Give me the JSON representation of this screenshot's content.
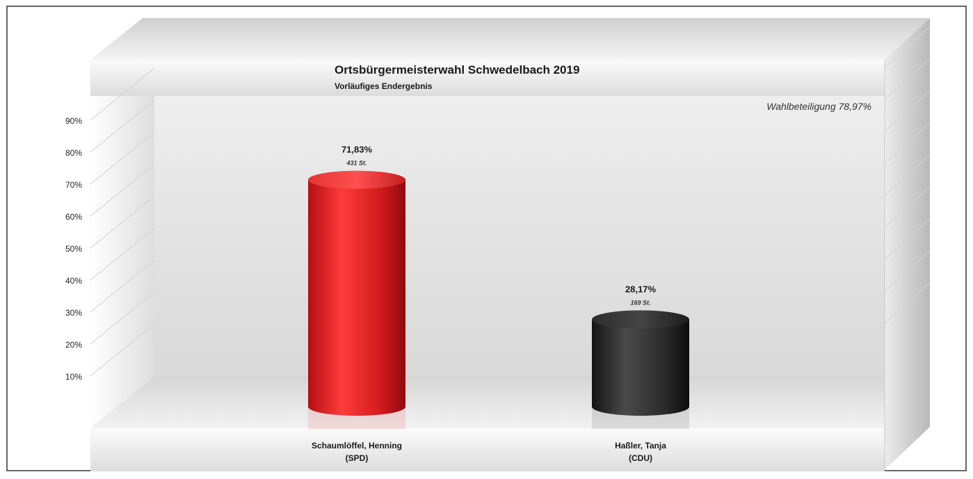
{
  "chart_data": {
    "type": "bar",
    "title": "Ortsbürgermeisterwahl Schwedelbach 2019",
    "subtitle": "Vorläufiges Endergebnis",
    "annotation": "Wahlbeteiligung 78,97%",
    "categories": [
      {
        "name": "Schaumlöffel, Henning",
        "party": "(SPD)"
      },
      {
        "name": "Haßler, Tanja",
        "party": "(CDU)"
      }
    ],
    "values": [
      71.83,
      28.17
    ],
    "value_labels": [
      "71,83%",
      "28,17%"
    ],
    "votes": [
      "431 St.",
      "169 St."
    ],
    "colors": [
      "#e52a2a",
      "#2e2e2e"
    ],
    "ytick_labels": [
      "90%",
      "80%",
      "70%",
      "60%",
      "50%",
      "40%",
      "30%",
      "20%",
      "10%"
    ],
    "yticks": [
      90,
      80,
      70,
      60,
      50,
      40,
      30,
      20,
      10
    ],
    "ylim": [
      0,
      100
    ],
    "grid": true,
    "legend": "none",
    "style": "3d-cylinder"
  }
}
